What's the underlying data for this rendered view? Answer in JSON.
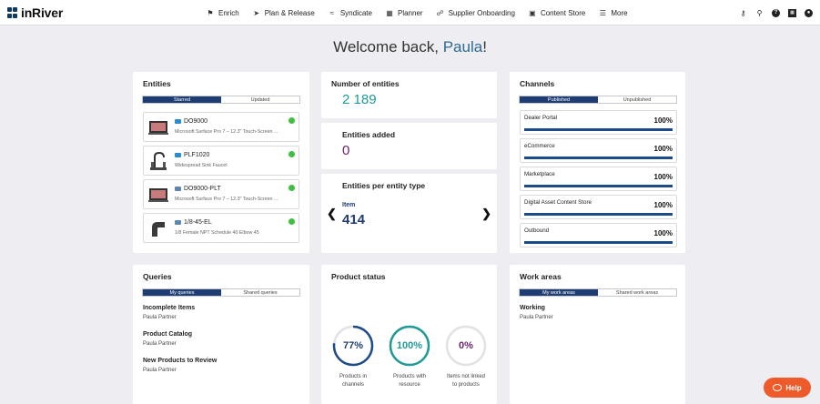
{
  "app": {
    "logo_text": "inRiver"
  },
  "nav": [
    {
      "label": "Enrich",
      "icon": "bookmark-icon"
    },
    {
      "label": "Plan & Release",
      "icon": "paper-plane-icon"
    },
    {
      "label": "Syndicate",
      "icon": "rss-icon"
    },
    {
      "label": "Planner",
      "icon": "calendar-icon"
    },
    {
      "label": "Supplier Onboarding",
      "icon": "handshake-icon"
    },
    {
      "label": "Content Store",
      "icon": "storefront-icon"
    },
    {
      "label": "More",
      "icon": "hamburger-icon"
    }
  ],
  "tools": [
    "key-icon",
    "search-icon",
    "help-circle-icon",
    "grid-icon",
    "user-icon"
  ],
  "welcome": {
    "prefix": "Welcome back, ",
    "name": "Paula",
    "suffix": "!"
  },
  "entities": {
    "title": "Entities",
    "tabs": {
      "active": "Starred",
      "inactive": "Updated"
    },
    "items": [
      {
        "id": "DO9000",
        "desc": "Microsoft Surface Pro 7 – 12.3\" Touch-Screen ...",
        "status_color": "#3fbf3f"
      },
      {
        "id": "PLF1020",
        "desc": "Widespread Sink Faucet",
        "status_color": "#3fbf3f"
      },
      {
        "id": "DO9000-PLT",
        "desc": "Microsoft Surface Pro 7 – 12.3\" Touch-Screen ...",
        "status_color": "#3fbf3f"
      },
      {
        "id": "1/8-45-EL",
        "desc": "1/8 Female NPT Schedule 40 Elbow 45",
        "status_color": "#3fbf3f"
      }
    ]
  },
  "stats": {
    "count_title": "Number of entities",
    "count_value": "2 189",
    "added_title": "Entities added",
    "added_value": "0",
    "type_title": "Entities per entity type",
    "type_name": "Item",
    "type_value": "414"
  },
  "channels": {
    "title": "Channels",
    "tabs": {
      "active": "Published",
      "inactive": "Unpublished"
    },
    "items": [
      {
        "name": "Dealer Portal",
        "percent_label": "100%",
        "percent": 100
      },
      {
        "name": "eCommerce",
        "percent_label": "100%",
        "percent": 100
      },
      {
        "name": "Marketplace",
        "percent_label": "100%",
        "percent": 100
      },
      {
        "name": "Digital Asset Content Store",
        "percent_label": "100%",
        "percent": 100
      },
      {
        "name": "Outbound",
        "percent_label": "100%",
        "percent": 100
      }
    ]
  },
  "queries": {
    "title": "Queries",
    "tabs": {
      "active": "My queries",
      "inactive": "Shared queries"
    },
    "items": [
      {
        "name": "Incomplete Items",
        "owner": "Paula Partner"
      },
      {
        "name": "Product Catalog",
        "owner": "Paula Partner"
      },
      {
        "name": "New Products to Review",
        "owner": "Paula Partner"
      }
    ]
  },
  "product_status": {
    "title": "Product status",
    "rings": [
      {
        "value_label": "77%",
        "value": 77,
        "label_line1": "Products in",
        "label_line2": "channels",
        "color": "#1e4a8a",
        "text_color": "#1e3d73"
      },
      {
        "value_label": "100%",
        "value": 100,
        "label_line1": "Products with",
        "label_line2": "resource",
        "color": "#1f9a97",
        "text_color": "#1f9a97"
      },
      {
        "value_label": "0%",
        "value": 0,
        "label_line1": "Items not linked",
        "label_line2": "to products",
        "color": "#6e1f6e",
        "text_color": "#6e1f6e"
      }
    ]
  },
  "work_areas": {
    "title": "Work areas",
    "tabs": {
      "active": "My work areas",
      "inactive": "Shared work areas"
    },
    "items": [
      {
        "name": "Working",
        "owner": "Paula Partner"
      }
    ]
  },
  "help": {
    "label": "Help"
  }
}
